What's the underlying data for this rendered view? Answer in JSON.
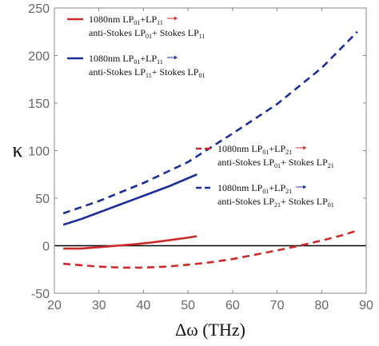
{
  "chart_data": {
    "type": "line",
    "xlabel": "Δω (THz)",
    "ylabel": "κ",
    "xlim": [
      20,
      90
    ],
    "ylim": [
      -50,
      250
    ],
    "x_ticks": [
      "20",
      "30",
      "40",
      "50",
      "60",
      "70",
      "80",
      "90"
    ],
    "y_ticks": [
      "-50",
      "0",
      "50",
      "100",
      "150",
      "200",
      "250"
    ],
    "grid": false,
    "zero_line": true,
    "colors": {
      "red": "#cc2a2a",
      "blue": "#1c2e9a",
      "zero": "#000000",
      "axis": "#888888"
    },
    "series": [
      {
        "legend_line1": {
          "main": "1080nm LP",
          "sub1": "01",
          "mid": "+LP",
          "sub2": "11"
        },
        "legend_line2": {
          "a": "anti-Stokes LP",
          "sa": "01",
          "b": "+ Stokes LP",
          "sb": "11"
        },
        "color": "#cc2a2a",
        "dash": "solid",
        "x": [
          22,
          26,
          30,
          34,
          38,
          42,
          46,
          50,
          52
        ],
        "y": [
          -3,
          -3,
          -1.5,
          0,
          1.5,
          3.5,
          6,
          8.5,
          10
        ]
      },
      {
        "legend_line1": {
          "main": "1080nm LP",
          "sub1": "01",
          "mid": "+LP",
          "sub2": "11"
        },
        "legend_line2": {
          "a": "anti-Stokes LP",
          "sa": "11",
          "b": "+ Stokes LP",
          "sb": "01"
        },
        "color": "#1c2e9a",
        "dash": "solid",
        "x": [
          22,
          26,
          30,
          34,
          38,
          42,
          46,
          50,
          52
        ],
        "y": [
          22,
          28,
          35,
          42,
          49,
          56,
          63,
          71,
          75
        ]
      },
      {
        "legend_line1": {
          "main": "1080nm LP",
          "sub1": "01",
          "mid": "+LP",
          "sub2": "21"
        },
        "legend_line2": {
          "a": "anti-Stokes LP",
          "sa": "01",
          "b": "+ Stokes LP",
          "sb": "21"
        },
        "color": "#cc2a2a",
        "dash": "dashed",
        "x": [
          22,
          30,
          35,
          40,
          45,
          50,
          55,
          60,
          65,
          70,
          75,
          80,
          85,
          88
        ],
        "y": [
          -19,
          -22,
          -23,
          -23,
          -22,
          -20,
          -17.5,
          -14,
          -9.5,
          -5,
          0,
          5.5,
          11.5,
          16
        ]
      },
      {
        "legend_line1": {
          "main": "1080nm LP",
          "sub1": "01",
          "mid": "+LP",
          "sub2": "21"
        },
        "legend_line2": {
          "a": "anti-Stokes LP",
          "sa": "21",
          "b": "+ Stokes LP",
          "sb": "01"
        },
        "color": "#1c2e9a",
        "dash": "dashed",
        "x": [
          22,
          30,
          40,
          50,
          60,
          70,
          80,
          88
        ],
        "y": [
          34,
          47,
          66,
          88,
          118,
          149,
          187,
          225
        ]
      }
    ]
  }
}
